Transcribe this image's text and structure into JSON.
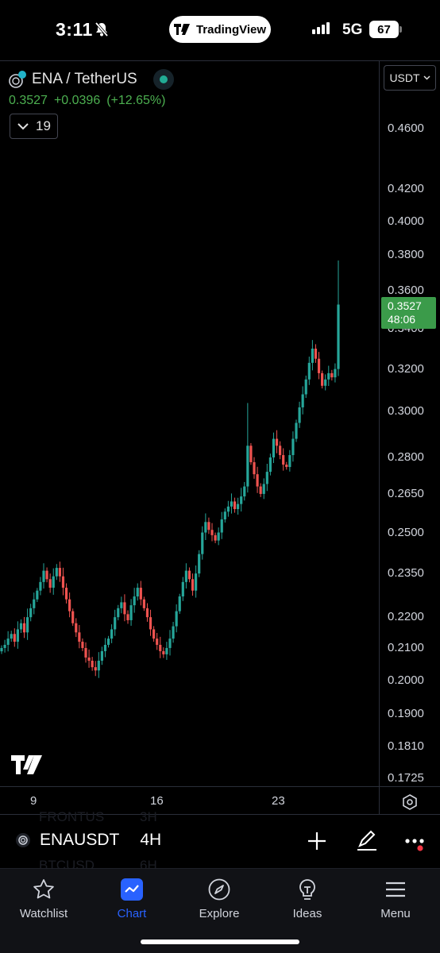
{
  "status_bar": {
    "time": "3:11",
    "app_pill": "TradingView",
    "network": "5G",
    "battery": "67"
  },
  "header": {
    "symbol_title": "ENA / TetherUS",
    "price": "0.3527",
    "change": "+0.0396",
    "change_pct": "(+12.65%)",
    "collapse_count": "19",
    "currency": "USDT"
  },
  "chart_data": {
    "type": "candlestick",
    "interval": "4H",
    "y_scale": "log",
    "ylim": [
      0.17,
      0.48
    ],
    "y_ticks": [
      "0.4600",
      "0.4200",
      "0.4000",
      "0.3800",
      "0.3600",
      "0.3400",
      "0.3200",
      "0.3000",
      "0.2800",
      "0.2650",
      "0.2500",
      "0.2350",
      "0.2200",
      "0.2100",
      "0.2000",
      "0.1900",
      "0.1810",
      "0.1725"
    ],
    "x_ticks": [
      "9",
      "16",
      "23"
    ],
    "last_price": "0.3527",
    "countdown": "48:06",
    "colors": {
      "up": "#26a69a",
      "down": "#ef5350",
      "bg": "#000000",
      "last_price_badge": "#3b9b4a"
    },
    "trend_closes": [
      0.21,
      0.211,
      0.213,
      0.2145,
      0.212,
      0.216,
      0.218,
      0.215,
      0.22,
      0.223,
      0.226,
      0.229,
      0.232,
      0.236,
      0.233,
      0.23,
      0.234,
      0.237,
      0.234,
      0.23,
      0.226,
      0.222,
      0.218,
      0.215,
      0.212,
      0.21,
      0.207,
      0.206,
      0.204,
      0.203,
      0.206,
      0.209,
      0.211,
      0.213,
      0.216,
      0.22,
      0.223,
      0.225,
      0.221,
      0.219,
      0.224,
      0.227,
      0.23,
      0.226,
      0.223,
      0.22,
      0.216,
      0.213,
      0.211,
      0.209,
      0.208,
      0.21,
      0.213,
      0.217,
      0.222,
      0.227,
      0.232,
      0.236,
      0.233,
      0.229,
      0.235,
      0.242,
      0.25,
      0.254,
      0.251,
      0.249,
      0.247,
      0.25,
      0.255,
      0.258,
      0.26,
      0.262,
      0.259,
      0.261,
      0.264,
      0.268,
      0.285,
      0.278,
      0.273,
      0.268,
      0.265,
      0.269,
      0.274,
      0.28,
      0.288,
      0.285,
      0.281,
      0.277,
      0.276,
      0.281,
      0.288,
      0.295,
      0.302,
      0.308,
      0.315,
      0.323,
      0.33,
      0.325,
      0.318,
      0.312,
      0.315,
      0.318,
      0.316,
      0.32,
      0.3527
    ]
  },
  "chart_labels": {
    "y_ticks": [
      "0.4600",
      "0.4200",
      "0.4000",
      "0.3800",
      "0.3600",
      "0.3400",
      "0.3200",
      "0.3000",
      "0.2800",
      "0.2650",
      "0.2500",
      "0.2350",
      "0.2200",
      "0.2100",
      "0.2000",
      "0.1900",
      "0.1810",
      "0.1725"
    ],
    "last_price": "0.3527",
    "countdown": "48:06",
    "x1": "9",
    "x2": "16",
    "x3": "23"
  },
  "symbol_bar": {
    "symbol": "ENAUSDT",
    "timeframe": "4H",
    "ghost_above_symbol": "FRONTUS",
    "ghost_above_tf": "3H",
    "ghost_below_symbol": "BTCUSD",
    "ghost_below_tf": "6H"
  },
  "tabs": [
    {
      "label": "Watchlist",
      "icon": "star-icon"
    },
    {
      "label": "Chart",
      "icon": "chart-icon",
      "active": true
    },
    {
      "label": "Explore",
      "icon": "compass-icon"
    },
    {
      "label": "Ideas",
      "icon": "lightbulb-icon"
    },
    {
      "label": "Menu",
      "icon": "hamburger-icon"
    }
  ]
}
